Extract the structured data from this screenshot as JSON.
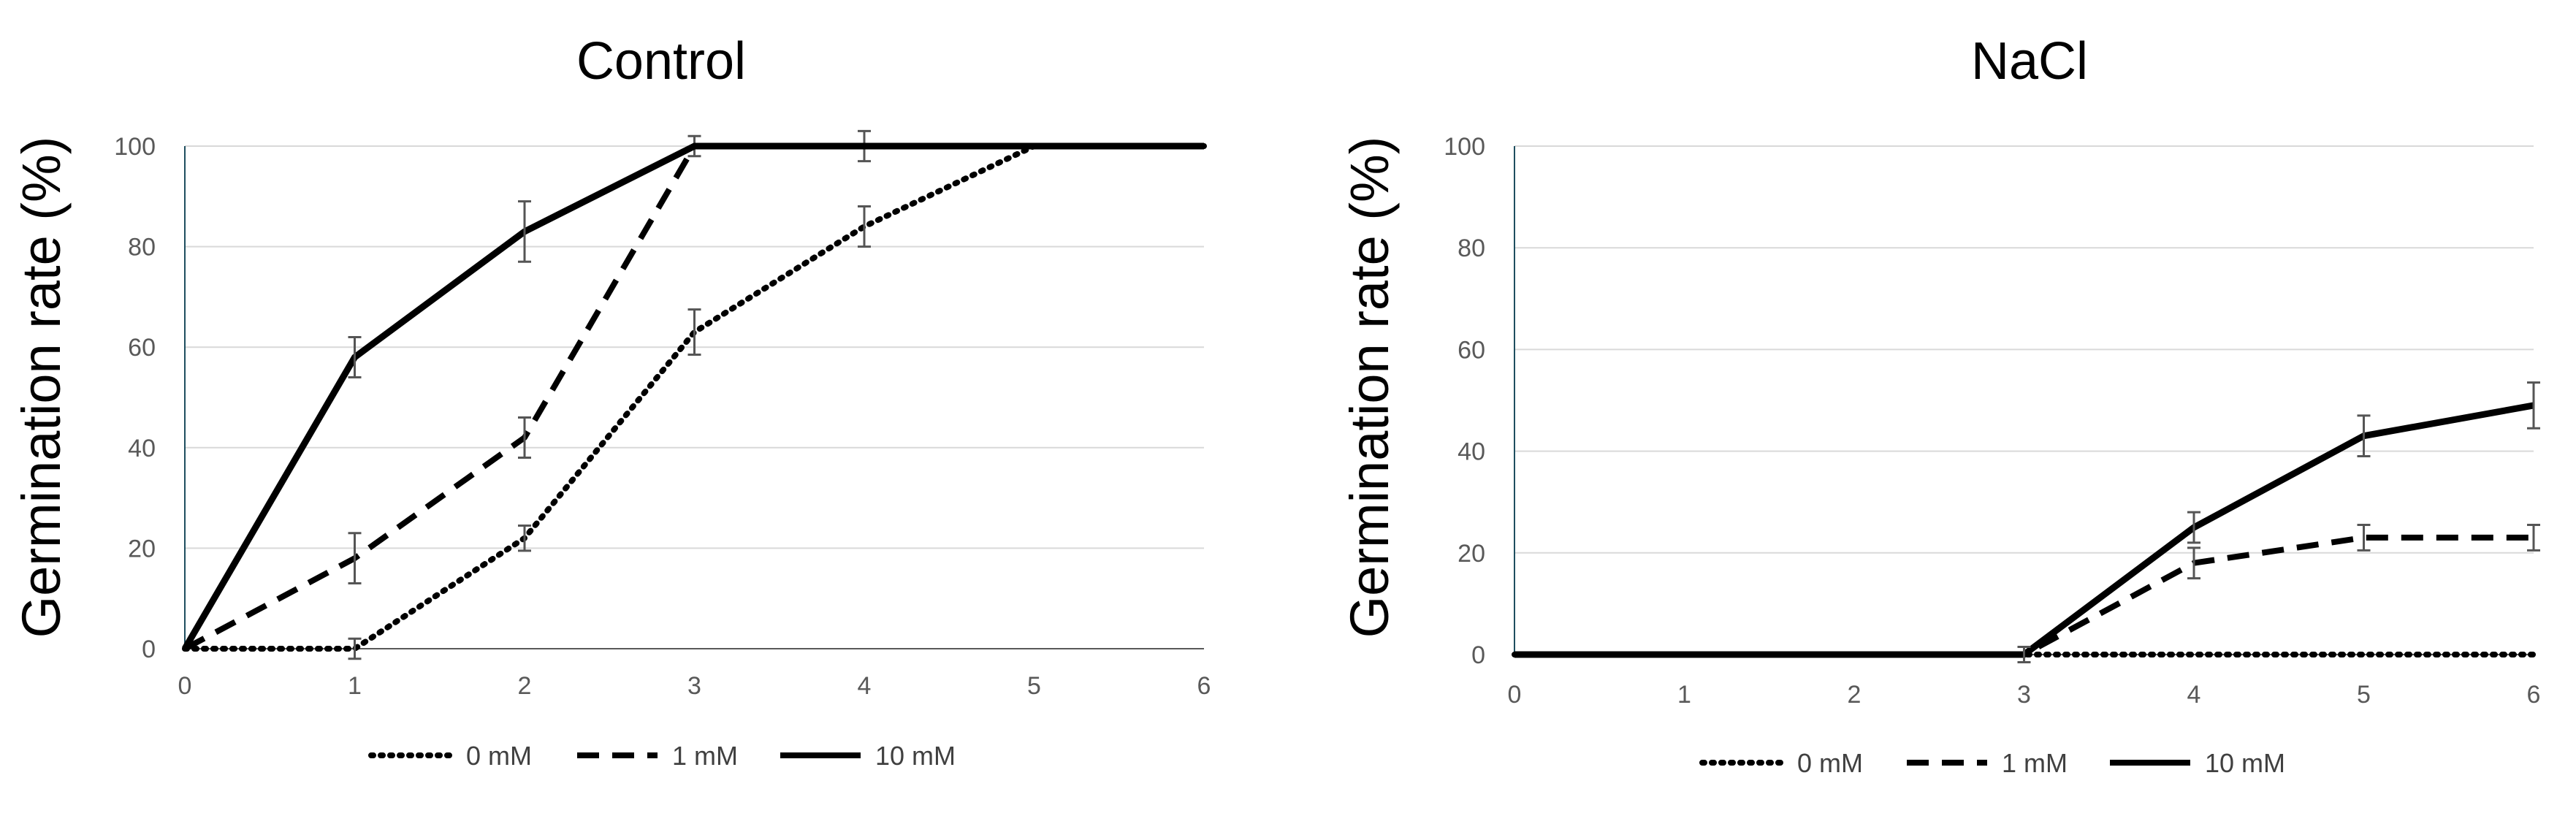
{
  "chart_data": [
    {
      "type": "line",
      "title": "Control",
      "xlabel": "",
      "ylabel": "Germination rate (%)",
      "x": [
        0,
        1,
        2,
        3,
        4,
        5,
        6
      ],
      "xticks": [
        "0",
        "1",
        "2",
        "3",
        "4",
        "5",
        "6"
      ],
      "yticks": [
        "0",
        "20",
        "40",
        "60",
        "80",
        "100"
      ],
      "xlim": [
        0,
        6
      ],
      "ylim": [
        0,
        100
      ],
      "grid": true,
      "legend_position": "bottom",
      "series": [
        {
          "name": "0 mM",
          "style": "dotted",
          "color": "#000000",
          "values": [
            0,
            0,
            22,
            63,
            84,
            100,
            100
          ],
          "errors": [
            0,
            2,
            2.5,
            4.5,
            4,
            0,
            0
          ]
        },
        {
          "name": "1 mM",
          "style": "dashed",
          "color": "#000000",
          "values": [
            0,
            18,
            42,
            100,
            100,
            100,
            100
          ],
          "errors": [
            0,
            5,
            4,
            2,
            3,
            0,
            0
          ]
        },
        {
          "name": "10 mM",
          "style": "solid",
          "color": "#000000",
          "values": [
            0,
            58,
            83,
            100,
            100,
            100,
            100
          ],
          "errors": [
            0,
            4,
            6,
            0,
            0,
            0,
            0
          ]
        }
      ]
    },
    {
      "type": "line",
      "title": "NaCl",
      "xlabel": "",
      "ylabel": "Germination rate (%)",
      "x": [
        0,
        1,
        2,
        3,
        4,
        5,
        6
      ],
      "xticks": [
        "0",
        "1",
        "2",
        "3",
        "4",
        "5",
        "6"
      ],
      "yticks": [
        "0",
        "20",
        "40",
        "60",
        "80",
        "100"
      ],
      "xlim": [
        0,
        6
      ],
      "ylim": [
        0,
        100
      ],
      "grid": true,
      "legend_position": "bottom",
      "series": [
        {
          "name": "0 mM",
          "style": "dotted",
          "color": "#000000",
          "values": [
            0,
            0,
            0,
            0,
            0,
            0,
            0
          ],
          "errors": [
            0,
            0,
            0,
            0,
            0,
            0,
            0
          ]
        },
        {
          "name": "1 mM",
          "style": "dashed",
          "color": "#000000",
          "values": [
            0,
            0,
            0,
            0,
            18,
            23,
            23
          ],
          "errors": [
            0,
            0,
            0,
            1.5,
            3,
            2.5,
            2.5
          ]
        },
        {
          "name": "10 mM",
          "style": "solid",
          "color": "#000000",
          "values": [
            0,
            0,
            0,
            0,
            25,
            43,
            49
          ],
          "errors": [
            0,
            0,
            0,
            1.5,
            3,
            4,
            4.5
          ]
        }
      ]
    }
  ]
}
